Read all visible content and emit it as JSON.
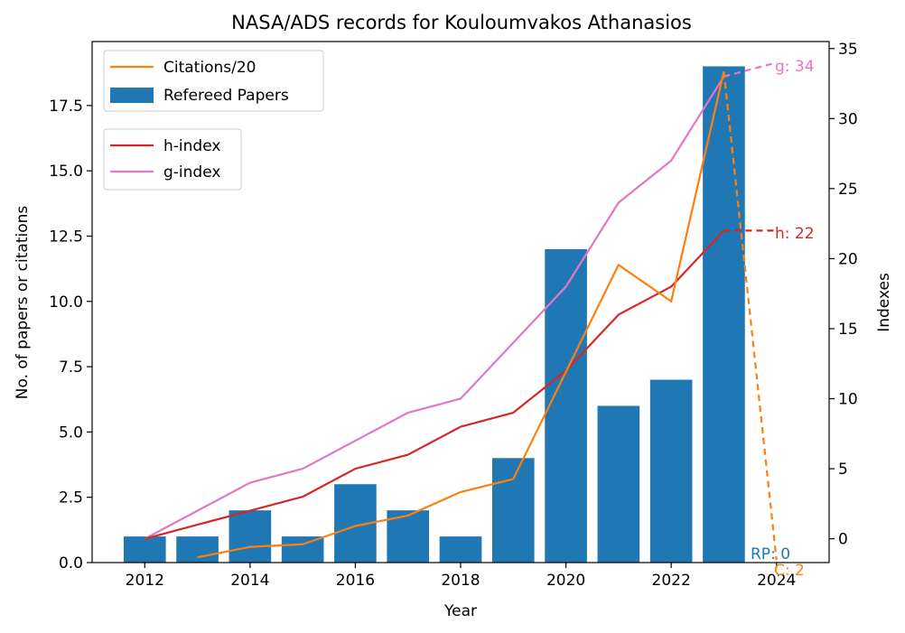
{
  "chart_data": {
    "type": "bar",
    "title": "NASA/ADS records for Kouloumvakos Athanasios",
    "xlabel": "Year",
    "ylabel": "No. of papers or citations",
    "y2label": "Indexes",
    "xlim": [
      2011.0,
      2025.0
    ],
    "ylim": [
      0,
      19.95
    ],
    "y2lim": [
      -1.7,
      35.5
    ],
    "xticks": [
      2012,
      2014,
      2016,
      2018,
      2020,
      2022,
      2024
    ],
    "yticks": [
      0.0,
      2.5,
      5.0,
      7.5,
      10.0,
      12.5,
      15.0,
      17.5
    ],
    "ytick_labels": [
      "0.0",
      "2.5",
      "5.0",
      "7.5",
      "10.0",
      "12.5",
      "15.0",
      "17.5"
    ],
    "y2ticks": [
      0,
      5,
      10,
      15,
      20,
      25,
      30,
      35
    ],
    "colors": {
      "bars": "#1f77b4",
      "citations": "#ff7f0e",
      "h_index": "#d62728",
      "g_index": "#e377c2"
    },
    "bars": {
      "name": "Refereed Papers",
      "x": [
        2012,
        2013,
        2014,
        2015,
        2016,
        2017,
        2018,
        2019,
        2020,
        2021,
        2022,
        2023
      ],
      "values": [
        1,
        1,
        2,
        1,
        3,
        2,
        1,
        4,
        12,
        6,
        7,
        19
      ]
    },
    "citations": {
      "name": "Citations/20",
      "x": [
        2013,
        2014,
        2015,
        2016,
        2017,
        2018,
        2019,
        2020,
        2021,
        2022,
        2023
      ],
      "values": [
        0.2,
        0.6,
        0.7,
        1.4,
        1.8,
        2.7,
        3.2,
        7.3,
        11.4,
        10.0,
        18.8
      ],
      "projection_x": [
        2023,
        2024
      ],
      "projection_values": [
        18.8,
        0.1
      ]
    },
    "h_index": {
      "name": "h-index",
      "x": [
        2012,
        2013,
        2014,
        2015,
        2016,
        2017,
        2018,
        2019,
        2020,
        2021,
        2022,
        2023
      ],
      "values": [
        0,
        1,
        2,
        3,
        5,
        6,
        8,
        9,
        12,
        16,
        18,
        22
      ],
      "projection_x": [
        2023,
        2024
      ],
      "projection_values": [
        22,
        22
      ]
    },
    "g_index": {
      "name": "g-index",
      "x": [
        2012,
        2013,
        2014,
        2015,
        2016,
        2017,
        2018,
        2019,
        2020,
        2021,
        2022,
        2023
      ],
      "values": [
        0,
        2,
        4,
        5,
        7,
        9,
        10,
        14,
        18,
        24,
        27,
        33
      ],
      "projection_x": [
        2023,
        2024
      ],
      "projection_values": [
        33,
        34
      ]
    },
    "annotations": {
      "rp": "RP: 0",
      "c": "C: 2",
      "h": "h: 22",
      "g": "g: 34"
    },
    "legend_top": [
      "Citations/20",
      "Refereed Papers"
    ],
    "legend_mid": [
      "h-index",
      "g-index"
    ],
    "legend_placement": "top-left",
    "grid": false
  }
}
